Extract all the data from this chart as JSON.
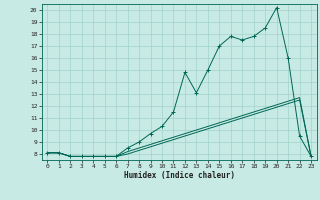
{
  "title": "",
  "xlabel": "Humidex (Indice chaleur)",
  "ylabel": "",
  "bg_color": "#c8eae4",
  "grid_color": "#a0d4cc",
  "line_color": "#006655",
  "xlim": [
    -0.5,
    23.5
  ],
  "ylim": [
    7.5,
    20.5
  ],
  "xticks": [
    0,
    1,
    2,
    3,
    4,
    5,
    6,
    7,
    8,
    9,
    10,
    11,
    12,
    13,
    14,
    15,
    16,
    17,
    18,
    19,
    20,
    21,
    22,
    23
  ],
  "yticks": [
    8,
    9,
    10,
    11,
    12,
    13,
    14,
    15,
    16,
    17,
    18,
    19,
    20
  ],
  "curve1_x": [
    0,
    1,
    2,
    3,
    4,
    5,
    6,
    7,
    8,
    9,
    10,
    11,
    12,
    13,
    14,
    15,
    16,
    17,
    18,
    19,
    20,
    21,
    22,
    23
  ],
  "curve1_y": [
    8.1,
    8.1,
    7.8,
    7.8,
    7.8,
    7.8,
    7.8,
    8.5,
    9.0,
    9.7,
    10.3,
    11.5,
    14.8,
    13.1,
    15.0,
    17.0,
    17.8,
    17.5,
    17.8,
    18.5,
    20.2,
    16.0,
    9.5,
    7.8
  ],
  "curve2_x": [
    0,
    1,
    2,
    3,
    4,
    5,
    6,
    7,
    8,
    9,
    10,
    11,
    12,
    13,
    14,
    15,
    16,
    17,
    18,
    19,
    20,
    21,
    22,
    23
  ],
  "curve2_y": [
    8.1,
    8.1,
    7.8,
    7.8,
    7.8,
    7.8,
    7.8,
    8.2,
    8.5,
    8.8,
    9.1,
    9.4,
    9.7,
    10.0,
    10.3,
    10.6,
    10.9,
    11.2,
    11.5,
    11.8,
    12.1,
    12.4,
    12.7,
    7.8
  ],
  "curve3_x": [
    0,
    1,
    2,
    3,
    4,
    5,
    6,
    7,
    8,
    9,
    10,
    11,
    12,
    13,
    14,
    15,
    16,
    17,
    18,
    19,
    20,
    21,
    22,
    23
  ],
  "curve3_y": [
    8.1,
    8.1,
    7.8,
    7.8,
    7.8,
    7.8,
    7.8,
    8.0,
    8.3,
    8.6,
    8.9,
    9.2,
    9.5,
    9.8,
    10.1,
    10.4,
    10.7,
    11.0,
    11.3,
    11.6,
    11.9,
    12.2,
    12.5,
    7.8
  ],
  "xlabel_fontsize": 5.5,
  "tick_fontsize": 4.5,
  "lw": 0.7,
  "marker_size": 2.5
}
